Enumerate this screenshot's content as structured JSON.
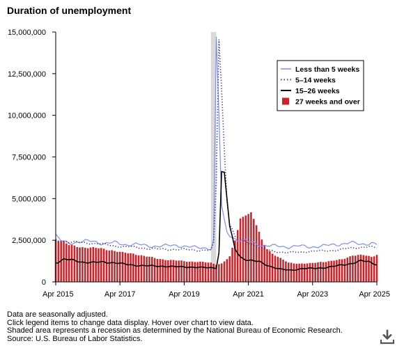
{
  "title": "Duration of unemployment",
  "notes": [
    "Data are seasonally adjusted.",
    "Click legend items to change data display. Hover over chart to view data.",
    "Shaded area represents a recession as determined by the National Bureau of Economic Research.",
    "Source: U.S. Bureau of Labor Statistics."
  ],
  "download_icon": "download-icon",
  "colors": {
    "lt5": "#7b8ff0",
    "w5_14": "#3a3a90",
    "w15_26": "#000000",
    "w27": "#cc2229",
    "recession": "#d9d9d9",
    "axis": "#000000"
  },
  "chart_data": {
    "type": "bar",
    "xlabel": "",
    "ylabel": "",
    "ylim": [
      0,
      15000000
    ],
    "yticks": [
      {
        "value": 0,
        "label": "0"
      },
      {
        "value": 2500000,
        "label": "2,500,000"
      },
      {
        "value": 5000000,
        "label": "5,000,000"
      },
      {
        "value": 7500000,
        "label": "7,500,000"
      },
      {
        "value": 10000000,
        "label": "10,000,000"
      },
      {
        "value": 12500000,
        "label": "12,500,000"
      },
      {
        "value": 15000000,
        "label": "15,000,000"
      }
    ],
    "xticks": [
      {
        "date": "2015-04",
        "label": "Apr 2015"
      },
      {
        "date": "2017-04",
        "label": "Apr 2017"
      },
      {
        "date": "2019-04",
        "label": "Apr 2019"
      },
      {
        "date": "2021-04",
        "label": "Apr 2021"
      },
      {
        "date": "2023-04",
        "label": "Apr 2023"
      },
      {
        "date": "2025-04",
        "label": "Apr 2025"
      }
    ],
    "x_range": [
      "2015-04",
      "2025-04"
    ],
    "recession": [
      "2020-02",
      "2020-04"
    ],
    "legend_position": "top-right",
    "legend": [
      {
        "key": "lt5",
        "label": "Less than 5 weeks"
      },
      {
        "key": "w5_14",
        "label": "5–14 weeks"
      },
      {
        "key": "w15_26",
        "label": "15–26 weeks"
      },
      {
        "key": "w27",
        "label": "27 weeks and over"
      }
    ],
    "series": [
      {
        "key": "lt5",
        "style": "line",
        "anchors": [
          [
            "2015-04",
            2750000
          ],
          [
            "2015-06",
            2450000
          ],
          [
            "2015-09",
            2350000
          ],
          [
            "2016-01",
            2400000
          ],
          [
            "2016-06",
            2450000
          ],
          [
            "2016-10",
            2300000
          ],
          [
            "2017-02",
            2350000
          ],
          [
            "2017-06",
            2250000
          ],
          [
            "2017-10",
            2250000
          ],
          [
            "2018-03",
            2150000
          ],
          [
            "2018-08",
            2150000
          ],
          [
            "2019-01",
            2200000
          ],
          [
            "2019-06",
            2100000
          ],
          [
            "2019-09",
            2050000
          ],
          [
            "2019-12",
            2050000
          ],
          [
            "2020-02",
            2000000
          ],
          [
            "2020-03",
            2500000
          ],
          [
            "2020-04",
            14300000
          ],
          [
            "2020-05",
            10000000
          ],
          [
            "2020-06",
            4500000
          ],
          [
            "2020-07",
            3600000
          ],
          [
            "2020-08",
            3000000
          ],
          [
            "2020-10",
            2700000
          ],
          [
            "2020-12",
            2500000
          ],
          [
            "2021-03",
            2450000
          ],
          [
            "2021-06",
            2350000
          ],
          [
            "2021-09",
            2200000
          ],
          [
            "2021-12",
            2150000
          ],
          [
            "2022-03",
            2150000
          ],
          [
            "2022-07",
            2100000
          ],
          [
            "2022-11",
            2150000
          ],
          [
            "2023-03",
            2100000
          ],
          [
            "2023-08",
            2150000
          ],
          [
            "2024-01",
            2250000
          ],
          [
            "2024-06",
            2350000
          ],
          [
            "2024-10",
            2250000
          ],
          [
            "2025-02",
            2350000
          ],
          [
            "2025-04",
            2250000
          ]
        ]
      },
      {
        "key": "w5_14",
        "style": "dotted",
        "anchors": [
          [
            "2015-04",
            2500000
          ],
          [
            "2015-09",
            2400000
          ],
          [
            "2016-02",
            2350000
          ],
          [
            "2016-08",
            2300000
          ],
          [
            "2017-02",
            2150000
          ],
          [
            "2017-08",
            2100000
          ],
          [
            "2018-03",
            2000000
          ],
          [
            "2018-09",
            1950000
          ],
          [
            "2019-03",
            1950000
          ],
          [
            "2019-09",
            1900000
          ],
          [
            "2020-02",
            1900000
          ],
          [
            "2020-03",
            2300000
          ],
          [
            "2020-04",
            6000000
          ],
          [
            "2020-05",
            14800000
          ],
          [
            "2020-06",
            11500000
          ],
          [
            "2020-07",
            8000000
          ],
          [
            "2020-08",
            5000000
          ],
          [
            "2020-09",
            3500000
          ],
          [
            "2020-11",
            2700000
          ],
          [
            "2021-02",
            2500000
          ],
          [
            "2021-05",
            2300000
          ],
          [
            "2021-09",
            2000000
          ],
          [
            "2022-01",
            1850000
          ],
          [
            "2022-06",
            1750000
          ],
          [
            "2022-12",
            1800000
          ],
          [
            "2023-06",
            1850000
          ],
          [
            "2024-01",
            1900000
          ],
          [
            "2024-07",
            2050000
          ],
          [
            "2025-01",
            2100000
          ],
          [
            "2025-04",
            2050000
          ]
        ]
      },
      {
        "key": "w15_26",
        "style": "line",
        "anchors": [
          [
            "2015-04",
            1150000
          ],
          [
            "2015-07",
            1350000
          ],
          [
            "2015-10",
            1300000
          ],
          [
            "2016-02",
            1200000
          ],
          [
            "2016-06",
            1150000
          ],
          [
            "2016-10",
            1200000
          ],
          [
            "2017-02",
            1150000
          ],
          [
            "2017-06",
            1050000
          ],
          [
            "2017-10",
            1000000
          ],
          [
            "2018-03",
            950000
          ],
          [
            "2018-08",
            950000
          ],
          [
            "2019-01",
            900000
          ],
          [
            "2019-06",
            900000
          ],
          [
            "2019-11",
            850000
          ],
          [
            "2020-02",
            850000
          ],
          [
            "2020-04",
            850000
          ],
          [
            "2020-05",
            1800000
          ],
          [
            "2020-06",
            6500000
          ],
          [
            "2020-07",
            6600000
          ],
          [
            "2020-08",
            5000000
          ],
          [
            "2020-09",
            3200000
          ],
          [
            "2020-11",
            2000000
          ],
          [
            "2021-01",
            1500000
          ],
          [
            "2021-04",
            1300000
          ],
          [
            "2021-08",
            1200000
          ],
          [
            "2021-12",
            950000
          ],
          [
            "2022-04",
            750000
          ],
          [
            "2022-08",
            700000
          ],
          [
            "2022-12",
            800000
          ],
          [
            "2023-04",
            800000
          ],
          [
            "2023-08",
            850000
          ],
          [
            "2024-01",
            950000
          ],
          [
            "2024-06",
            1100000
          ],
          [
            "2024-10",
            1250000
          ],
          [
            "2025-01",
            1200000
          ],
          [
            "2025-04",
            1050000
          ]
        ]
      },
      {
        "key": "w27",
        "style": "bar",
        "anchors": [
          [
            "2015-04",
            2550000
          ],
          [
            "2015-06",
            2500000
          ],
          [
            "2015-09",
            2200000
          ],
          [
            "2016-01",
            2100000
          ],
          [
            "2016-05",
            2050000
          ],
          [
            "2016-09",
            2000000
          ],
          [
            "2017-01",
            1900000
          ],
          [
            "2017-05",
            1750000
          ],
          [
            "2017-09",
            1700000
          ],
          [
            "2018-01",
            1550000
          ],
          [
            "2018-06",
            1400000
          ],
          [
            "2018-11",
            1300000
          ],
          [
            "2019-04",
            1250000
          ],
          [
            "2019-09",
            1200000
          ],
          [
            "2020-02",
            1150000
          ],
          [
            "2020-04",
            1050000
          ],
          [
            "2020-06",
            1100000
          ],
          [
            "2020-09",
            1500000
          ],
          [
            "2020-11",
            2500000
          ],
          [
            "2021-01",
            3800000
          ],
          [
            "2021-03",
            4100000
          ],
          [
            "2021-05",
            4100000
          ],
          [
            "2021-07",
            3400000
          ],
          [
            "2021-09",
            2500000
          ],
          [
            "2021-11",
            2000000
          ],
          [
            "2022-01",
            1700000
          ],
          [
            "2022-04",
            1400000
          ],
          [
            "2022-07",
            1150000
          ],
          [
            "2022-11",
            1100000
          ],
          [
            "2023-03",
            1100000
          ],
          [
            "2023-07",
            1200000
          ],
          [
            "2023-11",
            1250000
          ],
          [
            "2024-03",
            1350000
          ],
          [
            "2024-07",
            1600000
          ],
          [
            "2024-11",
            1600000
          ],
          [
            "2025-02",
            1500000
          ],
          [
            "2025-04",
            1650000
          ]
        ]
      }
    ]
  }
}
